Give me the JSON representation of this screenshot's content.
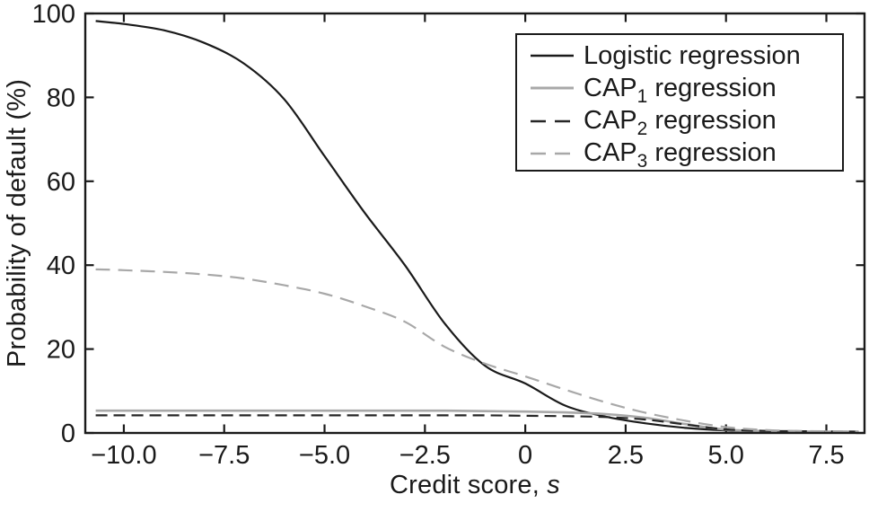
{
  "chart_data": {
    "type": "line",
    "title": "",
    "xlabel": {
      "text": "Credit score, ",
      "italic": "s"
    },
    "ylabel": "Probability of default (%)",
    "xlim": [
      -10.96,
      8.45
    ],
    "ylim": [
      0,
      100
    ],
    "grid": false,
    "legend_position": "top-right",
    "x_ticks": {
      "values": [
        -10,
        -7.5,
        -5,
        -2.5,
        0,
        2.5,
        5,
        7.5
      ],
      "labels": [
        "−10.0",
        "−7.5",
        "−5.0",
        "−2.5",
        "0",
        "2.5",
        "5.0",
        "7.5"
      ]
    },
    "y_ticks": {
      "values": [
        0,
        20,
        40,
        60,
        80,
        100
      ],
      "labels": [
        "0",
        "20",
        "40",
        "60",
        "80",
        "100"
      ]
    },
    "x": [
      -10.7,
      -10,
      -9,
      -8,
      -7,
      -6,
      -5,
      -4,
      -3,
      -2,
      -1,
      0,
      1,
      2,
      3,
      4,
      5,
      6,
      7,
      8.3
    ],
    "series": [
      {
        "name": "logistic-regression",
        "label": {
          "text": "Logistic regression",
          "sub": "",
          "after": ""
        },
        "color": "#1a1a1a",
        "style": "solid",
        "dash": "",
        "width": 2.2,
        "values": [
          98.2,
          97.5,
          96.0,
          93.0,
          88.0,
          79.5,
          66.0,
          52.5,
          40.0,
          26.0,
          16.0,
          11.8,
          6.5,
          3.9,
          2.3,
          1.2,
          0.6,
          0.4,
          0.3,
          0.25
        ]
      },
      {
        "name": "cap1-regression",
        "label": {
          "text": "CAP",
          "sub": "1",
          "after": " regression"
        },
        "color": "#a8a8a8",
        "style": "solid",
        "dash": "",
        "width": 2.6,
        "values": [
          5.3,
          5.3,
          5.3,
          5.3,
          5.3,
          5.3,
          5.3,
          5.3,
          5.3,
          5.3,
          5.2,
          5.1,
          4.9,
          4.5,
          3.6,
          2.1,
          0.8,
          0.45,
          0.35,
          0.3
        ]
      },
      {
        "name": "cap2-regression",
        "label": {
          "text": "CAP",
          "sub": "2",
          "after": " regression"
        },
        "color": "#262626",
        "style": "dashed",
        "dash": "13 7",
        "width": 2.2,
        "values": [
          4.2,
          4.2,
          4.2,
          4.2,
          4.2,
          4.2,
          4.2,
          4.2,
          4.2,
          4.2,
          4.2,
          4.1,
          4.0,
          3.8,
          3.2,
          2.0,
          0.85,
          0.5,
          0.4,
          0.3
        ]
      },
      {
        "name": "cap3-regression",
        "label": {
          "text": "CAP",
          "sub": "3",
          "after": " regression"
        },
        "color": "#a8a8a8",
        "style": "dashed",
        "dash": "16 9",
        "width": 2.2,
        "values": [
          39.0,
          38.8,
          38.4,
          37.8,
          36.8,
          35.2,
          33.2,
          30.2,
          26.5,
          20.5,
          16.5,
          13.5,
          10.3,
          7.3,
          4.8,
          2.9,
          1.4,
          0.7,
          0.45,
          0.35
        ]
      }
    ]
  }
}
